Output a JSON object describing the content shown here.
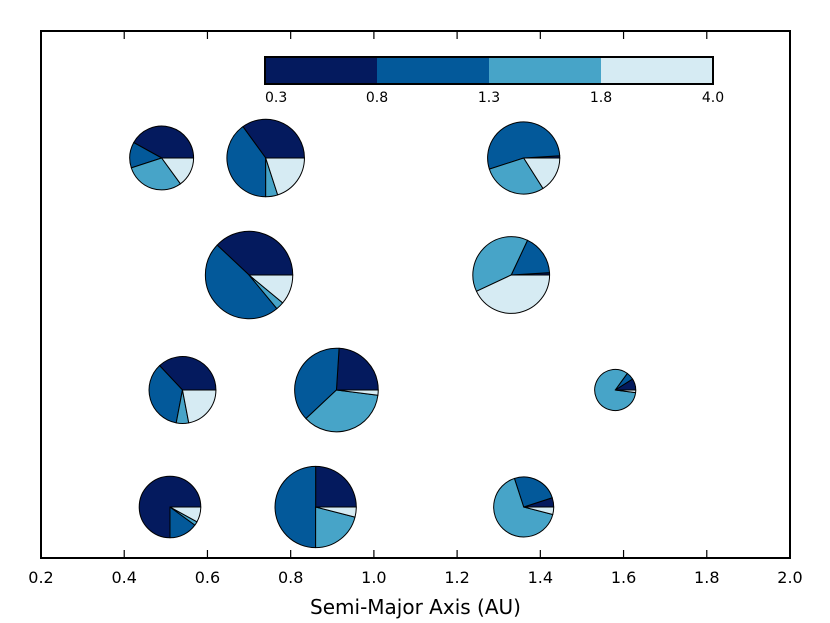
{
  "chart_data": {
    "type": "pie",
    "xlabel": "Semi-Major Axis (AU)",
    "ylabel": "",
    "xlim": [
      0.2,
      2.0
    ],
    "x_ticks": [
      "0.2",
      "0.4",
      "0.6",
      "0.8",
      "1.0",
      "1.2",
      "1.4",
      "1.6",
      "1.8",
      "2.0"
    ],
    "rows": 4,
    "colorbar": {
      "placement": "top-center",
      "boundary_labels": [
        "0.3",
        "0.8",
        "1.3",
        "1.8",
        "4.0"
      ],
      "bins": [
        {
          "range": "0.3-0.8",
          "color": "#041a5e"
        },
        {
          "range": "0.8-1.3",
          "color": "#03599a"
        },
        {
          "range": "1.3-1.8",
          "color": "#47a4c8"
        },
        {
          "range": "1.8-4.0",
          "color": "#d6ebf3"
        }
      ]
    },
    "pies": [
      {
        "x": 0.49,
        "row": 1,
        "size": 0.84,
        "fractions": [
          0.42,
          0.13,
          0.3,
          0.15
        ]
      },
      {
        "x": 0.74,
        "row": 1,
        "size": 1.02,
        "fractions": [
          0.35,
          0.4,
          0.05,
          0.2
        ]
      },
      {
        "x": 1.36,
        "row": 1,
        "size": 0.95,
        "fractions": [
          0.01,
          0.54,
          0.29,
          0.16
        ]
      },
      {
        "x": 0.7,
        "row": 2,
        "size": 1.15,
        "fractions": [
          0.38,
          0.48,
          0.03,
          0.11
        ]
      },
      {
        "x": 1.33,
        "row": 2,
        "size": 1.01,
        "fractions": [
          0.01,
          0.17,
          0.39,
          0.43
        ]
      },
      {
        "x": 0.54,
        "row": 3,
        "size": 0.88,
        "fractions": [
          0.37,
          0.35,
          0.06,
          0.22
        ]
      },
      {
        "x": 0.91,
        "row": 3,
        "size": 1.1,
        "fractions": [
          0.24,
          0.38,
          0.36,
          0.02
        ]
      },
      {
        "x": 1.58,
        "row": 3,
        "size": 0.54,
        "fractions": [
          0.09,
          0.06,
          0.83,
          0.02
        ]
      },
      {
        "x": 0.51,
        "row": 4,
        "size": 0.81,
        "fractions": [
          0.75,
          0.15,
          0.02,
          0.08
        ]
      },
      {
        "x": 0.86,
        "row": 4,
        "size": 1.07,
        "fractions": [
          0.25,
          0.5,
          0.21,
          0.04
        ]
      },
      {
        "x": 1.36,
        "row": 4,
        "size": 0.79,
        "fractions": [
          0.05,
          0.25,
          0.66,
          0.04
        ]
      }
    ]
  }
}
